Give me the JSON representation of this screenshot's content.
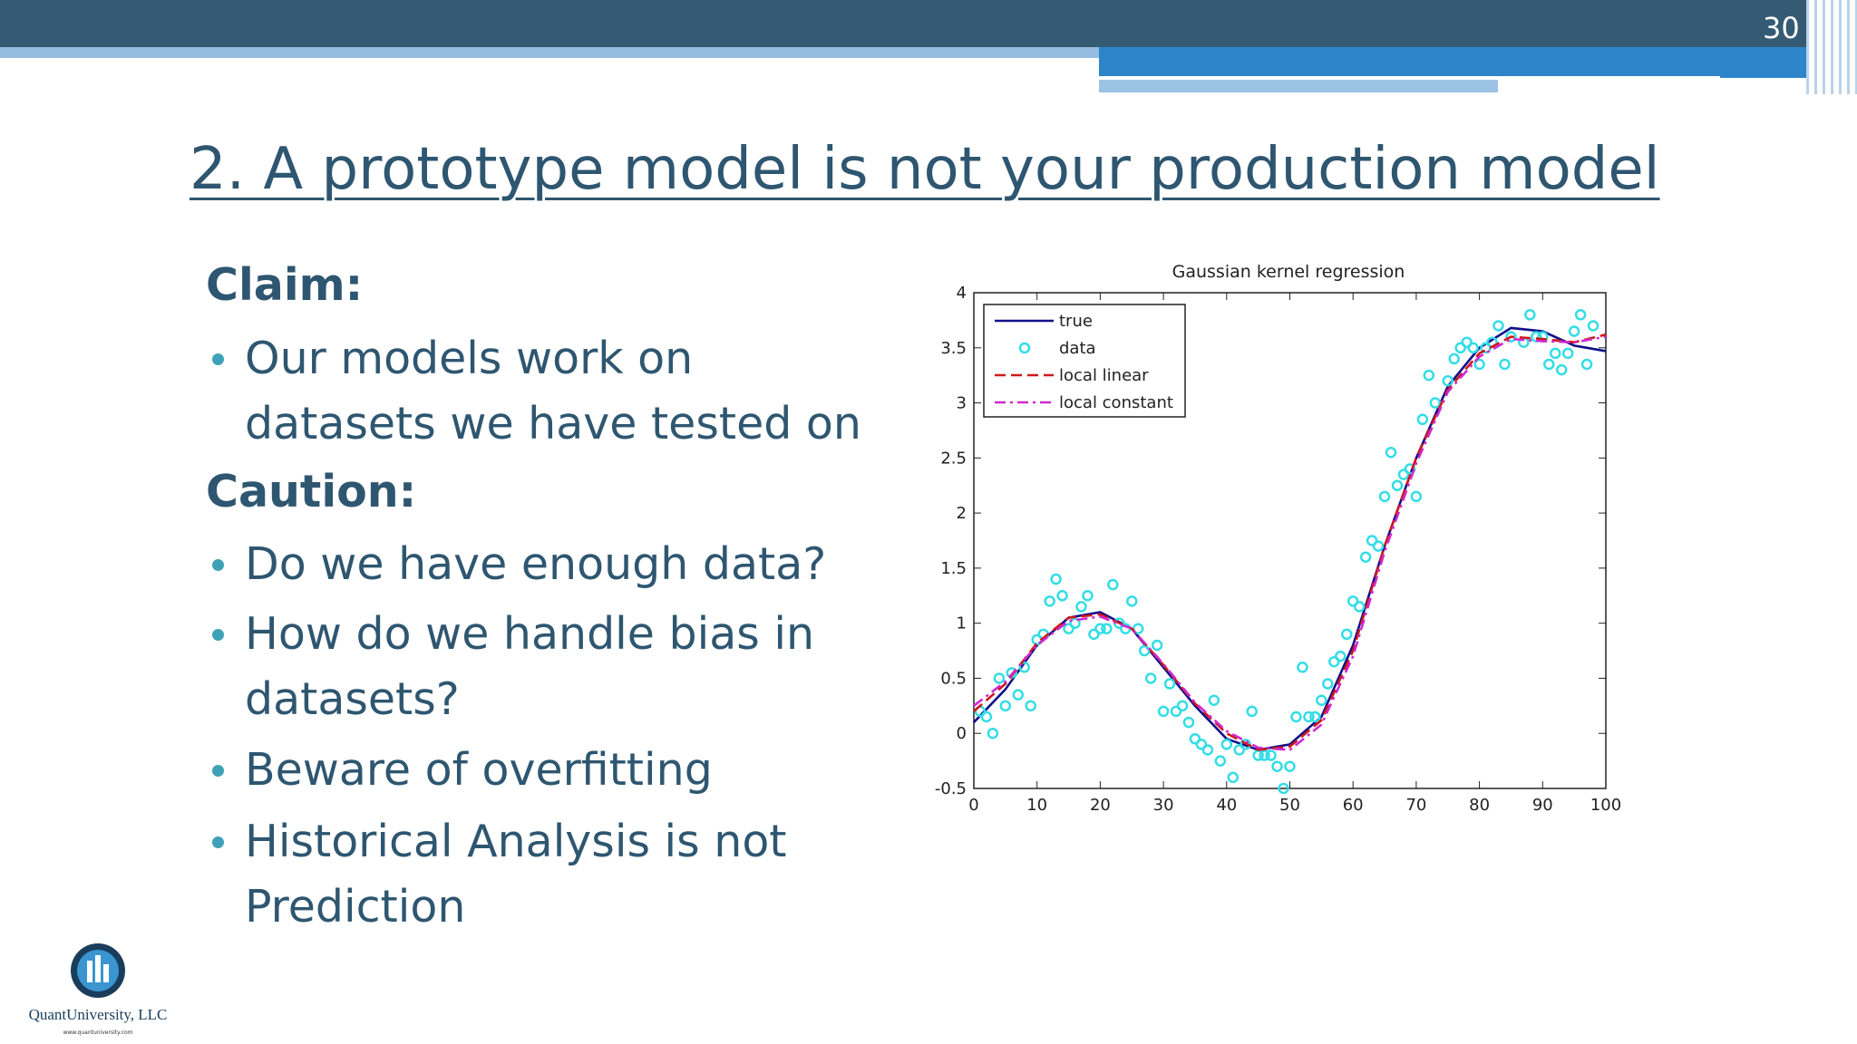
{
  "slide_number": "30",
  "title": "2. A prototype model is not your production model",
  "content": [
    {
      "heading": "Claim:",
      "bullets": [
        "Our models work on datasets we have tested on"
      ]
    },
    {
      "heading": "Caution:",
      "bullets": [
        "Do we have enough data?",
        "How do we handle bias in datasets?",
        "Beware of overfitting",
        "Historical Analysis is not Prediction"
      ]
    }
  ],
  "logo": {
    "name": "QuantUniversity, LLC",
    "url": "www.quantuniversity.com"
  },
  "chart_data": {
    "type": "line",
    "title": "Gaussian kernel regression",
    "xlim": [
      0,
      100
    ],
    "xticks": [
      0,
      10,
      20,
      30,
      40,
      50,
      60,
      70,
      80,
      90,
      100
    ],
    "ylim": [
      -0.5,
      4
    ],
    "yticks": [
      -0.5,
      0,
      0.5,
      1,
      1.5,
      2,
      2.5,
      3,
      3.5,
      4
    ],
    "legend": "upper left",
    "series": [
      {
        "name": "true",
        "color": "#10108c",
        "style": "solid",
        "x": [
          0,
          5,
          10,
          15,
          20,
          25,
          30,
          35,
          40,
          45,
          50,
          55,
          60,
          65,
          70,
          75,
          80,
          85,
          90,
          95,
          100
        ],
        "values": [
          0.1,
          0.4,
          0.8,
          1.05,
          1.1,
          0.95,
          0.6,
          0.25,
          -0.05,
          -0.15,
          -0.1,
          0.15,
          0.8,
          1.7,
          2.5,
          3.15,
          3.5,
          3.68,
          3.65,
          3.52,
          3.47
        ]
      },
      {
        "name": "data",
        "color": "#33dde6",
        "style": "markers",
        "x": [
          1,
          2,
          3,
          4,
          5,
          6,
          7,
          8,
          9,
          10,
          11,
          12,
          13,
          14,
          15,
          16,
          17,
          18,
          19,
          20,
          21,
          22,
          23,
          24,
          25,
          26,
          27,
          28,
          29,
          30,
          31,
          32,
          33,
          34,
          35,
          36,
          37,
          38,
          39,
          40,
          41,
          42,
          43,
          44,
          45,
          46,
          47,
          48,
          49,
          50,
          51,
          52,
          53,
          54,
          55,
          56,
          57,
          58,
          59,
          60,
          61,
          62,
          63,
          64,
          65,
          66,
          67,
          68,
          69,
          70,
          71,
          72,
          73,
          75,
          76,
          77,
          78,
          79,
          80,
          81,
          82,
          83,
          84,
          85,
          87,
          88,
          89,
          90,
          91,
          92,
          93,
          94,
          95,
          96,
          97,
          98
        ],
        "values": [
          0.2,
          0.15,
          0,
          0.5,
          0.25,
          0.55,
          0.35,
          0.6,
          0.25,
          0.85,
          0.9,
          1.2,
          1.4,
          1.25,
          0.95,
          1,
          1.15,
          1.25,
          0.9,
          0.95,
          0.95,
          1.35,
          1,
          0.95,
          1.2,
          0.95,
          0.75,
          0.5,
          0.8,
          0.2,
          0.45,
          0.2,
          0.25,
          0.1,
          -0.05,
          -0.1,
          -0.15,
          0.3,
          -0.25,
          -0.1,
          -0.4,
          -0.15,
          -0.1,
          0.2,
          -0.2,
          -0.2,
          -0.2,
          -0.3,
          -0.5,
          -0.3,
          0.15,
          0.6,
          0.15,
          0.15,
          0.3,
          0.45,
          0.65,
          0.7,
          0.9,
          1.2,
          1.15,
          1.6,
          1.75,
          1.7,
          2.15,
          2.55,
          2.25,
          2.35,
          2.4,
          2.15,
          2.85,
          3.25,
          3,
          3.2,
          3.4,
          3.5,
          3.55,
          3.5,
          3.35,
          3.5,
          3.55,
          3.7,
          3.35,
          3.6,
          3.55,
          3.8,
          3.6,
          3.6,
          3.35,
          3.45,
          3.3,
          3.45,
          3.65,
          3.8,
          3.35,
          3.7
        ]
      },
      {
        "name": "local linear",
        "color": "#d01818",
        "style": "dashed",
        "x": [
          0,
          5,
          10,
          15,
          20,
          25,
          30,
          35,
          40,
          45,
          50,
          55,
          60,
          65,
          70,
          75,
          80,
          85,
          90,
          95,
          100
        ],
        "values": [
          0.2,
          0.45,
          0.82,
          1.05,
          1.08,
          0.95,
          0.62,
          0.27,
          0,
          -0.15,
          -0.12,
          0.12,
          0.75,
          1.7,
          2.5,
          3.12,
          3.45,
          3.6,
          3.58,
          3.55,
          3.62
        ]
      },
      {
        "name": "local constant",
        "color": "#d028d0",
        "style": "dashdot",
        "x": [
          0,
          5,
          10,
          15,
          20,
          25,
          30,
          35,
          40,
          45,
          50,
          55,
          60,
          65,
          70,
          75,
          80,
          85,
          90,
          95,
          100
        ],
        "values": [
          0.25,
          0.47,
          0.8,
          1.02,
          1.06,
          0.95,
          0.63,
          0.28,
          0.02,
          -0.13,
          -0.15,
          0.08,
          0.7,
          1.65,
          2.45,
          3.1,
          3.42,
          3.58,
          3.56,
          3.55,
          3.6
        ]
      }
    ]
  }
}
